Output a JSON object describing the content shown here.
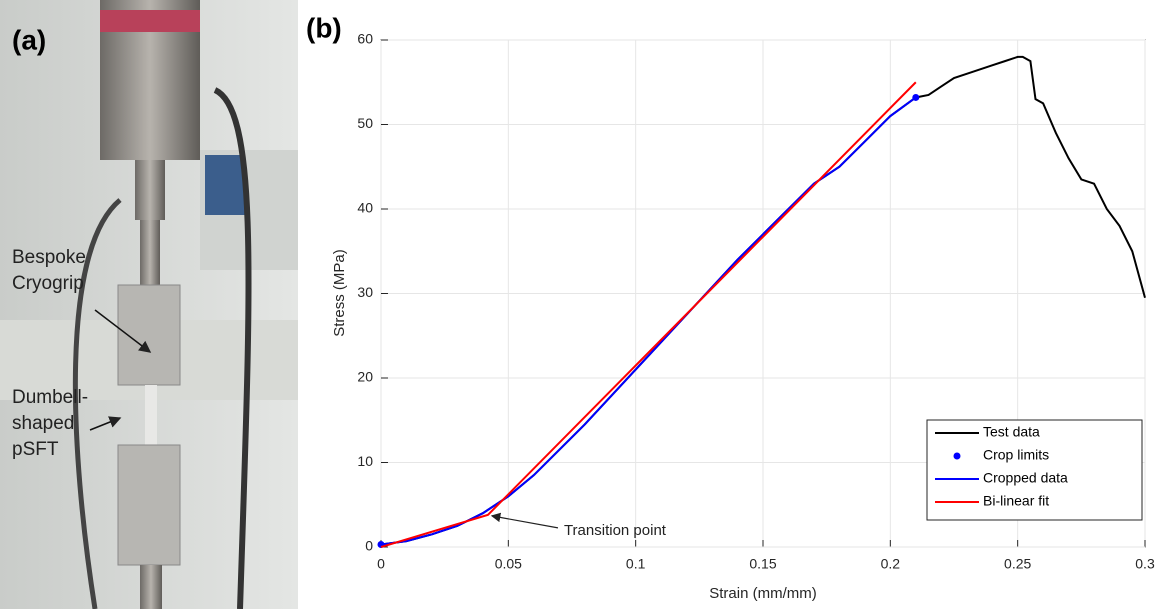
{
  "panel_a": {
    "label": "(a)",
    "annotations": [
      {
        "lines": [
          "Bespoke",
          "Cryogrip"
        ]
      },
      {
        "lines": [
          "Dumbell-",
          "shaped",
          "pSFT"
        ]
      }
    ]
  },
  "chart_data": {
    "type": "line",
    "panel_label": "(b)",
    "xlabel": "Strain (mm/mm)",
    "ylabel": "Stress (MPa)",
    "xlim": [
      0,
      0.3
    ],
    "ylim": [
      0,
      60
    ],
    "xticks": [
      0,
      0.05,
      0.1,
      0.15,
      0.2,
      0.25,
      0.3
    ],
    "yticks": [
      0,
      10,
      20,
      30,
      40,
      50,
      60
    ],
    "grid": true,
    "legend": "lower right",
    "series": [
      {
        "name": "Test data",
        "color": "#000000",
        "mode": "line",
        "x": [
          0,
          0.01,
          0.02,
          0.03,
          0.04,
          0.05,
          0.06,
          0.08,
          0.1,
          0.12,
          0.14,
          0.16,
          0.17,
          0.18,
          0.19,
          0.2,
          0.21,
          0.215,
          0.22,
          0.225,
          0.23,
          0.235,
          0.24,
          0.245,
          0.25,
          0.252,
          0.255,
          0.257,
          0.26,
          0.265,
          0.27,
          0.275,
          0.28,
          0.285,
          0.29,
          0.295,
          0.3
        ],
        "values": [
          0.3,
          0.7,
          1.5,
          2.5,
          4,
          6,
          8.5,
          14.5,
          21,
          27.5,
          34,
          40,
          43,
          45,
          48,
          51,
          53.2,
          53.5,
          54.5,
          55.5,
          56,
          56.5,
          57,
          57.5,
          58,
          58,
          57.5,
          53,
          52.5,
          49,
          46,
          43.5,
          43,
          40,
          38,
          35,
          29.5
        ]
      },
      {
        "name": "Crop limits",
        "color": "#0000ff",
        "mode": "markers",
        "x": [
          0,
          0.21
        ],
        "values": [
          0.3,
          53.2
        ]
      },
      {
        "name": "Cropped data",
        "color": "#0000ff",
        "mode": "line",
        "x": [
          0,
          0.01,
          0.02,
          0.03,
          0.04,
          0.05,
          0.06,
          0.08,
          0.1,
          0.12,
          0.14,
          0.16,
          0.17,
          0.18,
          0.19,
          0.2,
          0.21
        ],
        "values": [
          0.3,
          0.7,
          1.5,
          2.5,
          4,
          6,
          8.5,
          14.5,
          21,
          27.5,
          34,
          40,
          43,
          45,
          48,
          51,
          53.2
        ]
      },
      {
        "name": "Bi-linear fit",
        "color": "#ff0000",
        "mode": "line",
        "x": [
          0,
          0.042,
          0.21
        ],
        "values": [
          0,
          3.8,
          55
        ]
      }
    ],
    "annotations": [
      {
        "text": "Transition point",
        "x": 0.042,
        "y": 3.8
      }
    ]
  }
}
